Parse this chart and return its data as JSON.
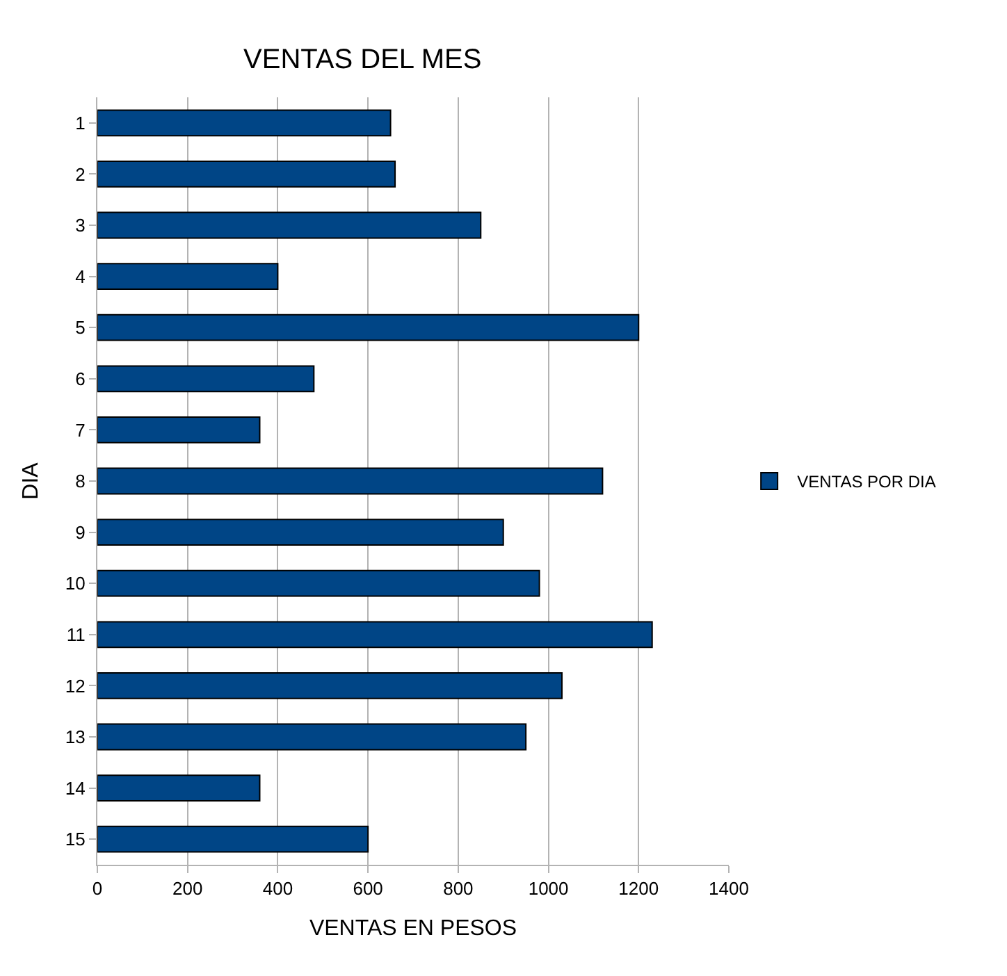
{
  "chart_data": {
    "type": "bar",
    "orientation": "horizontal",
    "title": "VENTAS DEL MES",
    "xlabel": "VENTAS EN PESOS",
    "ylabel": "DIA",
    "categories": [
      "1",
      "2",
      "3",
      "4",
      "5",
      "6",
      "7",
      "8",
      "9",
      "10",
      "11",
      "12",
      "13",
      "14",
      "15"
    ],
    "series": [
      {
        "name": "VENTAS POR DIA",
        "color": "#004586",
        "values": [
          650,
          660,
          850,
          400,
          1200,
          480,
          360,
          1120,
          900,
          980,
          1230,
          1030,
          950,
          360,
          600
        ]
      }
    ],
    "xlim": [
      0,
      1400
    ],
    "xticks": [
      0,
      200,
      400,
      600,
      800,
      1000,
      1200,
      1400
    ],
    "grid": "x",
    "legend": "right"
  }
}
